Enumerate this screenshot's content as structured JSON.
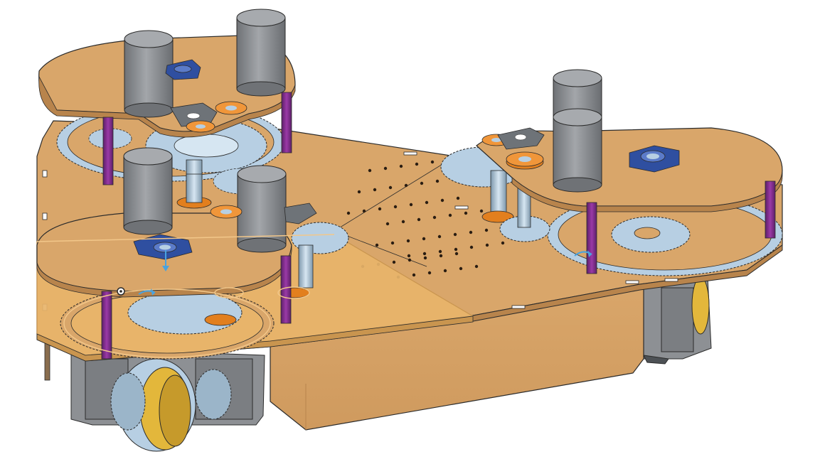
{
  "viewport": {
    "background": "#ffffff"
  },
  "colors": {
    "plate": "#d9a66a",
    "plate_edge": "#b8844c",
    "plate_selected": "#e8b46a",
    "plate_selected_edge": "#c9954f",
    "gear": "#b7cfe3",
    "gear_edge": "#7d97ab",
    "gear_dark": "#8fa9bd",
    "motor": "#8d9094",
    "motor_top": "#a7aaae",
    "motor_dark": "#6f7276",
    "standoff": "#7a2a86",
    "standoff_light": "#9a3aa7",
    "bearing_orange": "#e27f1e",
    "bearing_blue": "#2f4fa0",
    "bearing_blue_light": "#5b7bc9",
    "hub_gray": "#6e7378",
    "wheel_yellow": "#e3b73b",
    "box_tan": "#d8a56b",
    "selection_outline": "#f2c78a",
    "manipulator": "#4aa3df",
    "hole": "#2a1d12",
    "outline": "#2b2b2b"
  },
  "icons": {
    "pivot": "pivot-dot-icon",
    "rotate_a": "rotate-arrow-icon",
    "rotate_b": "rotate-arrow-icon",
    "move": "move-arrow-icon"
  }
}
